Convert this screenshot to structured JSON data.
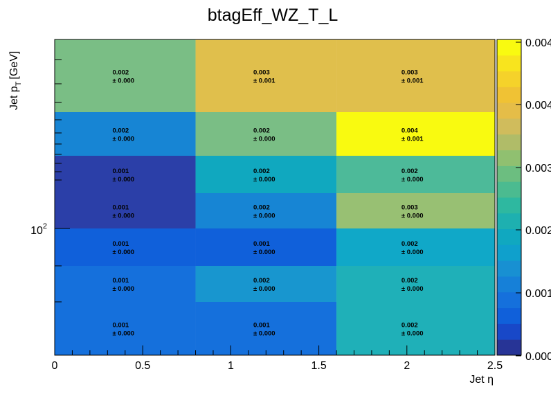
{
  "chart_data": {
    "type": "heatmap",
    "title": "btagEff_WZ_T_L",
    "xlabel": "Jet η",
    "ylabel_main": "Jet p",
    "ylabel_sub": "T",
    "ylabel_unit": "[GeV]",
    "x_edges": [
      0,
      0.8,
      1.6,
      2.5
    ],
    "x_ticks": [
      "0",
      "0.5",
      "1",
      "1.5",
      "2",
      "2.5"
    ],
    "y_tick_label": "10",
    "y_tick_exp": "2",
    "palette_labels": [
      "0.004",
      "0.004",
      "0.003",
      "0.002",
      "0.001",
      "0.000"
    ],
    "rows": [
      {
        "row": 0,
        "cells": [
          {
            "color": "#7abe85",
            "value": "0.002",
            "error": "± 0.000"
          },
          {
            "color": "#e0bf4c",
            "value": "0.003",
            "error": "± 0.001"
          },
          {
            "color": "#e0bf4c",
            "value": "0.003",
            "error": "± 0.001"
          }
        ]
      },
      {
        "row": 1,
        "cells": [
          {
            "color": "#1785d4",
            "value": "0.002",
            "error": "± 0.000"
          },
          {
            "color": "#7abe85",
            "value": "0.002",
            "error": "± 0.000"
          },
          {
            "color": "#f9fa10",
            "value": "0.004",
            "error": "± 0.001"
          }
        ]
      },
      {
        "row": 2,
        "cells": [
          {
            "color": "#2b3fa8",
            "value": "0.001",
            "error": "± 0.000"
          },
          {
            "color": "#10a8bf",
            "value": "0.002",
            "error": "± 0.000"
          },
          {
            "color": "#4dba99",
            "value": "0.002",
            "error": "± 0.000"
          }
        ]
      },
      {
        "row": 3,
        "cells": [
          {
            "color": "#2b3fa8",
            "value": "0.001",
            "error": "± 0.000"
          },
          {
            "color": "#1785d4",
            "value": "0.002",
            "error": "± 0.000"
          },
          {
            "color": "#98c073",
            "value": "0.003",
            "error": "± 0.000"
          }
        ]
      },
      {
        "row": 4,
        "cells": [
          {
            "color": "#1060da",
            "value": "0.001",
            "error": "± 0.000"
          },
          {
            "color": "#1060da",
            "value": "0.001",
            "error": "± 0.000"
          },
          {
            "color": "#10a8c8",
            "value": "0.002",
            "error": "± 0.000"
          }
        ]
      },
      {
        "row": 5,
        "cells": [
          {
            "color": "#1570dc",
            "value": "0.001",
            "error": "± 0.000"
          },
          {
            "color": "#1896cf",
            "value": "0.002",
            "error": "± 0.000"
          },
          {
            "color": "#1fb0b8",
            "value": "0.002",
            "error": "± 0.000"
          }
        ]
      },
      {
        "row": 6,
        "cells": [
          {
            "color": "#1570dc",
            "value": "0.001",
            "error": "± 0.000"
          },
          {
            "color": "#1570dc",
            "value": "0.001",
            "error": "± 0.000"
          },
          {
            "color": "#1fb0b8",
            "value": "0.002",
            "error": "± 0.000"
          }
        ]
      }
    ],
    "palette_colors": [
      "#273496",
      "#1848c8",
      "#1060da",
      "#1570dc",
      "#1680d8",
      "#1890d2",
      "#0fa0cc",
      "#10a8c0",
      "#1eb0b0",
      "#2eb8a0",
      "#4bbb90",
      "#6cbe80",
      "#90c070",
      "#b0bc68",
      "#d0bc5c",
      "#e5bd48",
      "#f0c234",
      "#f5d22a",
      "#f8e41e",
      "#f9fa10"
    ]
  }
}
